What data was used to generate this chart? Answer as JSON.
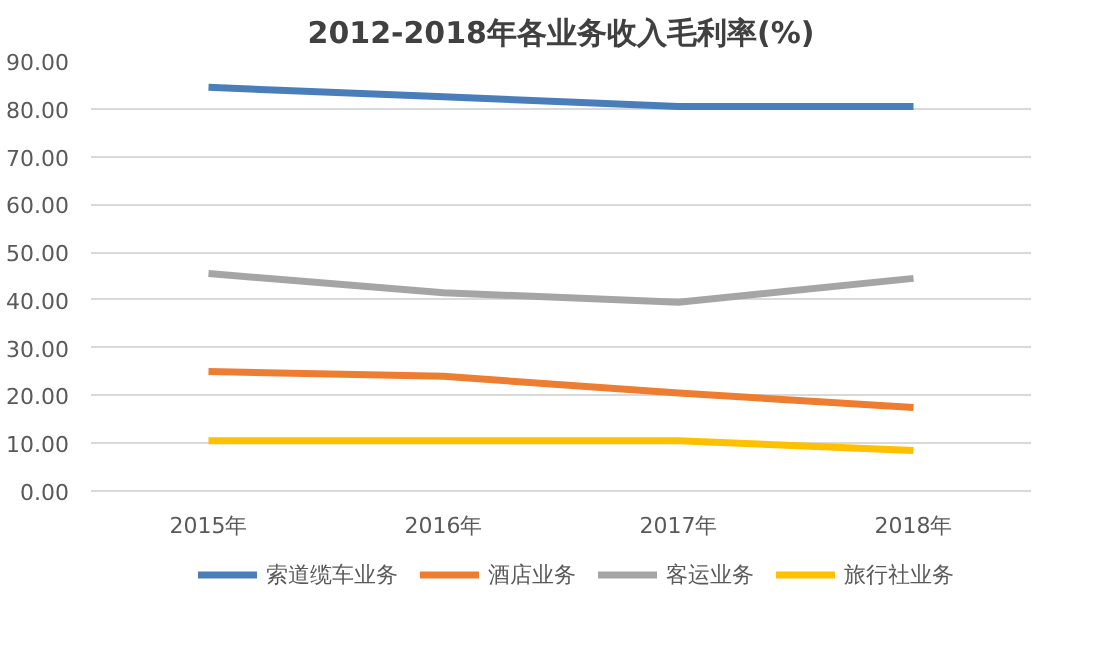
{
  "chart_data": {
    "type": "line",
    "title": "2012-2018年各业务收入毛利率(%)",
    "categories": [
      "2015年",
      "2016年",
      "2017年",
      "2018年"
    ],
    "series": [
      {
        "name": "索道缆车业务",
        "color": "#4a7ebb",
        "values": [
          84.5,
          82.5,
          80.5,
          80.5
        ]
      },
      {
        "name": "酒店业务",
        "color": "#ed7d31",
        "values": [
          25.0,
          24.0,
          20.5,
          17.5
        ]
      },
      {
        "name": "客运业务",
        "color": "#a5a5a5",
        "values": [
          45.5,
          41.5,
          39.5,
          44.5
        ]
      },
      {
        "name": "旅行社业务",
        "color": "#ffc000",
        "values": [
          10.5,
          10.5,
          10.5,
          8.5
        ]
      }
    ],
    "ylim": [
      0,
      90
    ],
    "yticks": [
      {
        "value": 0,
        "label": "0.00"
      },
      {
        "value": 10,
        "label": "10.00"
      },
      {
        "value": 20,
        "label": "20.00"
      },
      {
        "value": 30,
        "label": "30.00"
      },
      {
        "value": 40,
        "label": "40.00"
      },
      {
        "value": 50,
        "label": "50.00"
      },
      {
        "value": 60,
        "label": "60.00"
      },
      {
        "value": 70,
        "label": "70.00"
      },
      {
        "value": 80,
        "label": "80.00"
      },
      {
        "value": 90,
        "label": "90.00"
      }
    ],
    "grid": "y",
    "legend": "bottom",
    "marker": "none",
    "line_style": "solid"
  }
}
